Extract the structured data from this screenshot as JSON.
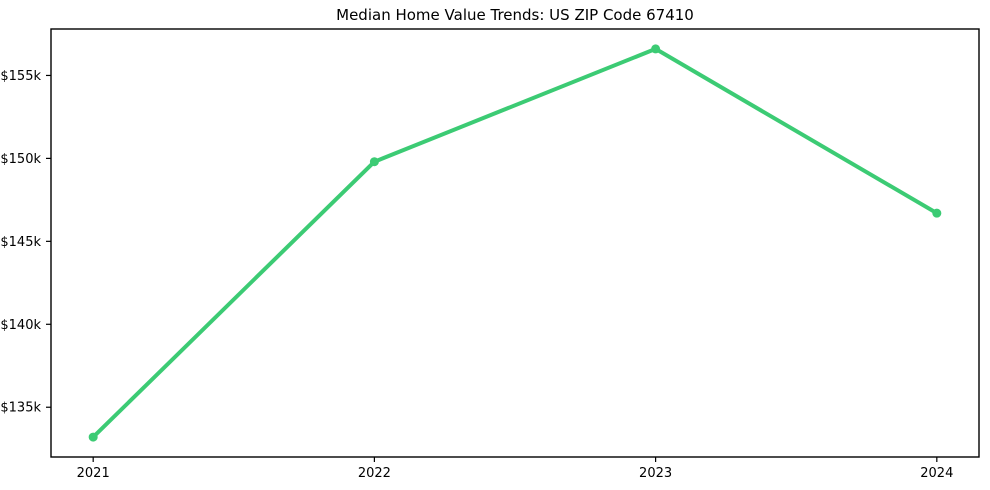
{
  "chart_data": {
    "type": "line",
    "title": "Median Home Value Trends: US ZIP Code 67410",
    "xlabel": "",
    "ylabel": "",
    "x": [
      2021,
      2022,
      2023,
      2024
    ],
    "xtick_labels": [
      "2021",
      "2022",
      "2023",
      "2024"
    ],
    "series": [
      {
        "name": "median-home-value",
        "values": [
          133200,
          149800,
          156600,
          146700
        ]
      }
    ],
    "ytick_values": [
      135000,
      140000,
      145000,
      150000,
      155000
    ],
    "ytick_labels": [
      "$135k",
      "$140k",
      "$145k",
      "$150k",
      "$155k"
    ],
    "xlim": [
      2020.85,
      2024.15
    ],
    "ylim": [
      132000,
      157800
    ],
    "grid": false,
    "legend_position": "none",
    "line_color": "#3ccb74",
    "axis_color": "#000000",
    "text_color": "#000000",
    "background_color": "#ffffff",
    "line_width": 4,
    "marker_radius": 4.5
  }
}
